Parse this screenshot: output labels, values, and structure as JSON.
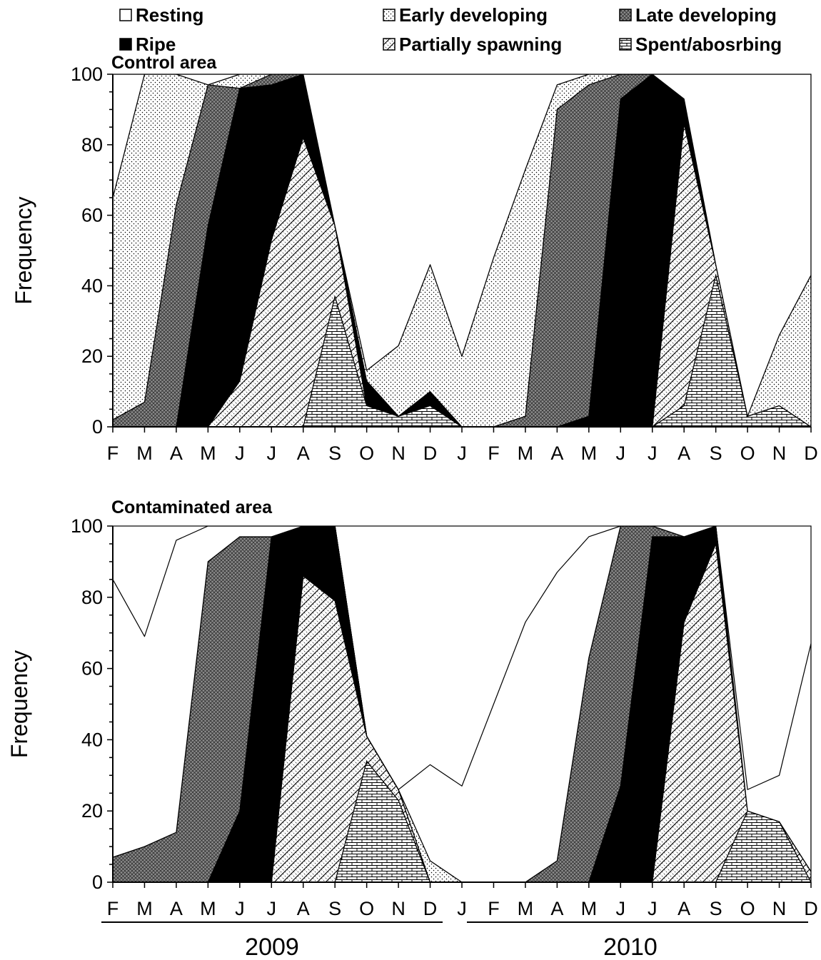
{
  "legend": [
    {
      "label": "Resting",
      "pattern": "resting"
    },
    {
      "label": "Early developing",
      "pattern": "early"
    },
    {
      "label": "Late developing",
      "pattern": "late"
    },
    {
      "label": "Ripe",
      "pattern": "ripe"
    },
    {
      "label": "Partially spawning",
      "pattern": "partial"
    },
    {
      "label": "Spent/abosrbing",
      "pattern": "spent"
    }
  ],
  "years": [
    "2009",
    "2010"
  ],
  "chart_data": [
    {
      "type": "area",
      "stacked": true,
      "title": "Control area",
      "ylabel": "Frequency",
      "ylim": [
        0,
        100
      ],
      "yticks": [
        0,
        20,
        40,
        60,
        80,
        100
      ],
      "categories": [
        "F",
        "M",
        "A",
        "M",
        "J",
        "J",
        "A",
        "S",
        "O",
        "N",
        "D",
        "J",
        "F",
        "M",
        "A",
        "M",
        "J",
        "J",
        "A",
        "S",
        "O",
        "N",
        "D"
      ],
      "series": [
        {
          "name": "Spent/abosrbing",
          "pattern": "spent",
          "values": [
            0,
            0,
            0,
            0,
            0,
            0,
            0,
            37,
            6,
            3,
            6,
            0,
            0,
            0,
            0,
            0,
            0,
            0,
            6,
            43,
            3,
            6,
            0
          ]
        },
        {
          "name": "Partially spawning",
          "pattern": "partial",
          "values": [
            0,
            0,
            0,
            0,
            13,
            53,
            82,
            20,
            0,
            0,
            0,
            0,
            0,
            0,
            0,
            0,
            0,
            0,
            80,
            3,
            0,
            0,
            0
          ]
        },
        {
          "name": "Ripe",
          "pattern": "ripe",
          "values": [
            0,
            0,
            0,
            57,
            83,
            44,
            18,
            0,
            7,
            0,
            4,
            0,
            0,
            0,
            0,
            3,
            93,
            100,
            7,
            0,
            0,
            0,
            0
          ]
        },
        {
          "name": "Late developing",
          "pattern": "late",
          "values": [
            2,
            7,
            63,
            40,
            0,
            3,
            0,
            0,
            0,
            0,
            0,
            0,
            0,
            3,
            90,
            94,
            7,
            0,
            0,
            0,
            0,
            0,
            0
          ]
        },
        {
          "name": "Early developing",
          "pattern": "early",
          "values": [
            63,
            93,
            37,
            0,
            4,
            0,
            0,
            0,
            3,
            20,
            36,
            20,
            48,
            70,
            7,
            3,
            0,
            0,
            0,
            0,
            0,
            20,
            43
          ]
        },
        {
          "name": "Resting",
          "pattern": "resting",
          "values": [
            35,
            0,
            0,
            3,
            0,
            0,
            0,
            43,
            84,
            77,
            54,
            80,
            52,
            27,
            3,
            0,
            0,
            0,
            7,
            54,
            97,
            74,
            57
          ]
        }
      ]
    },
    {
      "type": "area",
      "stacked": true,
      "title": "Contaminated area",
      "ylabel": "Frequency",
      "ylim": [
        0,
        100
      ],
      "yticks": [
        0,
        20,
        40,
        60,
        80,
        100
      ],
      "categories": [
        "F",
        "M",
        "A",
        "M",
        "J",
        "J",
        "A",
        "S",
        "O",
        "N",
        "D",
        "J",
        "F",
        "M",
        "A",
        "M",
        "J",
        "J",
        "A",
        "S",
        "O",
        "N",
        "D"
      ],
      "series": [
        {
          "name": "Spent/abosrbing",
          "pattern": "spent",
          "values": [
            0,
            0,
            0,
            0,
            0,
            0,
            0,
            0,
            34,
            23,
            0,
            0,
            0,
            0,
            0,
            0,
            0,
            0,
            0,
            0,
            20,
            17,
            0
          ]
        },
        {
          "name": "Partially spawning",
          "pattern": "partial",
          "values": [
            0,
            0,
            0,
            0,
            0,
            0,
            86,
            79,
            7,
            3,
            0,
            0,
            0,
            0,
            0,
            0,
            0,
            0,
            73,
            95,
            0,
            0,
            3
          ]
        },
        {
          "name": "Ripe",
          "pattern": "ripe",
          "values": [
            0,
            0,
            0,
            0,
            20,
            97,
            14,
            21,
            0,
            0,
            0,
            0,
            0,
            0,
            0,
            0,
            27,
            97,
            24,
            5,
            0,
            0,
            0
          ]
        },
        {
          "name": "Late developing",
          "pattern": "late",
          "values": [
            7,
            10,
            14,
            90,
            77,
            0,
            0,
            0,
            0,
            0,
            0,
            0,
            0,
            0,
            6,
            63,
            73,
            3,
            0,
            0,
            0,
            0,
            0
          ]
        },
        {
          "name": "Early developing",
          "pattern": "early",
          "values": [
            0,
            0,
            0,
            0,
            0,
            0,
            0,
            0,
            0,
            0,
            6,
            0,
            0,
            0,
            0,
            0,
            0,
            0,
            0,
            0,
            0,
            0,
            0
          ]
        },
        {
          "name": "Resting",
          "pattern": "resting",
          "values": [
            78,
            59,
            82,
            10,
            3,
            3,
            0,
            0,
            0,
            0,
            27,
            27,
            50,
            73,
            81,
            34,
            0,
            0,
            3,
            0,
            6,
            13,
            64
          ]
        }
      ]
    }
  ]
}
